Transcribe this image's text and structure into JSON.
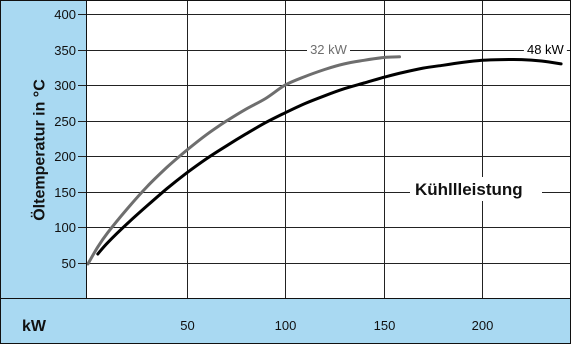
{
  "chart_data": {
    "type": "line",
    "title": "",
    "annotation": "Kühllleistung",
    "xlabel": "kW",
    "ylabel": "Öltemperatur in °C",
    "xlim": [
      -1,
      245
    ],
    "ylim": [
      0,
      420
    ],
    "x_ticks": [
      50,
      100,
      150,
      200
    ],
    "y_ticks": [
      50,
      100,
      150,
      200,
      250,
      300,
      350,
      400
    ],
    "grid": true,
    "colors": {
      "panel": "#a9d9f2",
      "grid": "#222222",
      "text": "#111111"
    },
    "series": [
      {
        "name": "32 kW",
        "color": "#6e6e6e",
        "x": [
          0,
          5,
          10,
          20,
          30,
          40,
          50,
          60,
          70,
          80,
          90,
          100,
          110,
          120,
          130,
          140,
          150,
          158
        ],
        "y": [
          48,
          72,
          92,
          126,
          157,
          184,
          208,
          230,
          249,
          266,
          281,
          300,
          312,
          322,
          330,
          335,
          339,
          340
        ]
      },
      {
        "name": "48 kW",
        "color": "#000000",
        "x": [
          5,
          10,
          20,
          30,
          40,
          50,
          60,
          70,
          80,
          90,
          100,
          110,
          120,
          130,
          140,
          150,
          160,
          170,
          180,
          190,
          200,
          210,
          220,
          230,
          240
        ],
        "y": [
          62,
          78,
          105,
          130,
          154,
          176,
          196,
          214,
          231,
          247,
          261,
          274,
          285,
          295,
          303,
          311,
          318,
          324,
          328,
          332,
          335,
          336,
          336,
          334,
          330
        ]
      }
    ]
  }
}
